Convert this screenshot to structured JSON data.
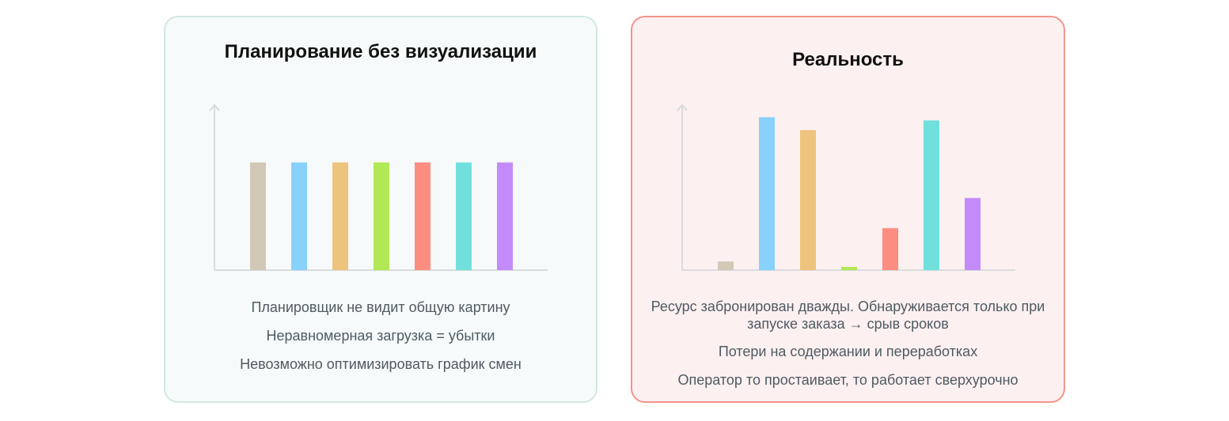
{
  "chart_data": [
    {
      "type": "bar",
      "title": "Планирование без визуализации",
      "categories": [
        "",
        "",
        "",
        "",
        "",
        "",
        ""
      ],
      "values": [
        100,
        100,
        100,
        100,
        100,
        100,
        100
      ],
      "ylim": [
        0,
        154
      ],
      "colors": [
        "#d2c8b6",
        "#88d1fb",
        "#eec37e",
        "#b1e855",
        "#fd8d81",
        "#71e0dd",
        "#c38bf9"
      ],
      "grid": false,
      "notes": [
        "Планировщик не видит общую картину",
        "Неравномерная загрузка = убытки",
        "Невозможно оптимизировать график смен"
      ]
    },
    {
      "type": "bar",
      "title": "Реальность",
      "categories": [
        "",
        "",
        "",
        "",
        "",
        "",
        ""
      ],
      "values": [
        8,
        142,
        130,
        3,
        39,
        139,
        67
      ],
      "ylim": [
        0,
        154
      ],
      "colors": [
        "#d2c8b6",
        "#88d1fb",
        "#eec37e",
        "#b1e855",
        "#fd8d81",
        "#71e0dd",
        "#c38bf9"
      ],
      "grid": false,
      "notes": [
        "Ресурс забронирован дважды. Обнаруживается только при запуске заказа → срыв сроков",
        "Потери на содержании и переработках",
        "Оператор то простаивает, то работает сверхурочно"
      ]
    }
  ]
}
